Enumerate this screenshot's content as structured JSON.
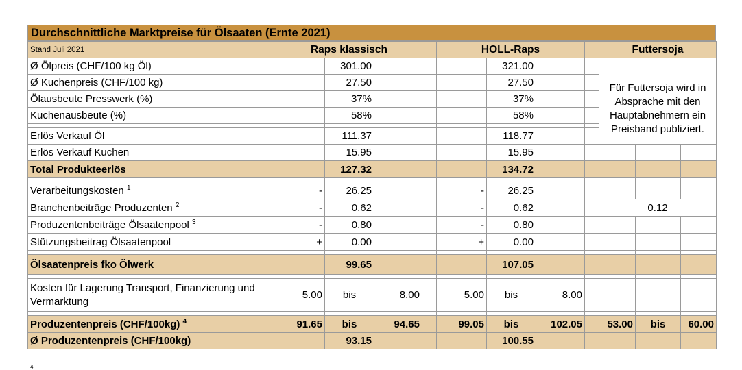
{
  "title": "Durchschnittliche Marktpreise für Ölsaaten (Ernte 2021)",
  "stand": "Stand Juli 2021",
  "columns": {
    "raps": "Raps klassisch",
    "holl": "HOLL-Raps",
    "soja": "Futtersoja"
  },
  "soja_note": "Für Futtersoja wird in Absprache mit den Hauptabnehmern ein Preisband publiziert.",
  "rows": [
    {
      "label": "Ø Ölpreis (CHF/100 kg Öl)",
      "raps": "301.00",
      "holl": "321.00"
    },
    {
      "label": "Ø Kuchenpreis (CHF/100 kg)",
      "raps": "27.50",
      "holl": "27.50"
    },
    {
      "label": "Ölausbeute Presswerk (%)",
      "raps": "37%",
      "holl": "37%"
    },
    {
      "label": "Kuchenausbeute (%)",
      "raps": "58%",
      "holl": "58%"
    },
    {
      "label": "Erlös Verkauf Öl",
      "raps": "111.37",
      "holl": "118.77"
    },
    {
      "label": "Erlös Verkauf Kuchen",
      "raps": "15.95",
      "holl": "15.95"
    },
    {
      "label": "Total Produkteerlös",
      "raps": "127.32",
      "holl": "134.72"
    },
    {
      "label": "Verarbeitungskosten",
      "sup": "1",
      "sign_raps": "-",
      "raps": "26.25",
      "sign_holl": "-",
      "holl": "26.25"
    },
    {
      "label": "Branchenbeiträge Produzenten",
      "sup": "2",
      "sign_raps": "-",
      "raps": "0.62",
      "sign_holl": "-",
      "holl": "0.62",
      "soja": "0.12"
    },
    {
      "label": "Produzentenbeiträge Ölsaatenpool",
      "sup": "3",
      "sign_raps": "-",
      "raps": "0.80",
      "sign_holl": "-",
      "holl": "0.80"
    },
    {
      "label": "Stützungsbeitrag Ölsaatenpool",
      "sign_raps": "+",
      "raps": "0.00",
      "sign_holl": "+",
      "holl": "0.00"
    },
    {
      "label": "Ölsaatenpreis fko Ölwerk",
      "raps": "99.65",
      "holl": "107.05"
    },
    {
      "label": "Kosten für Lagerung Transport, Finanzierung und Vermarktung",
      "raps_from": "5.00",
      "raps_bis": "bis",
      "raps_to": "8.00",
      "holl_from": "5.00",
      "holl_bis": "bis",
      "holl_to": "8.00"
    },
    {
      "label": "Produzentenpreis (CHF/100kg)",
      "sup": "4",
      "raps_from": "91.65",
      "raps_bis": "bis",
      "raps_to": "94.65",
      "holl_from": "99.05",
      "holl_bis": "bis",
      "holl_to": "102.05",
      "soja_from": "53.00",
      "soja_bis": "bis",
      "soja_to": "60.00"
    },
    {
      "label": "Ø Produzentenpreis (CHF/100kg)",
      "raps": "93.15",
      "holl": "100.55"
    }
  ],
  "footnote_mark": "4",
  "colors": {
    "title_bg": "#c8913f",
    "shade_bg": "#e8cfa6",
    "grid": "#9a9a9a"
  }
}
